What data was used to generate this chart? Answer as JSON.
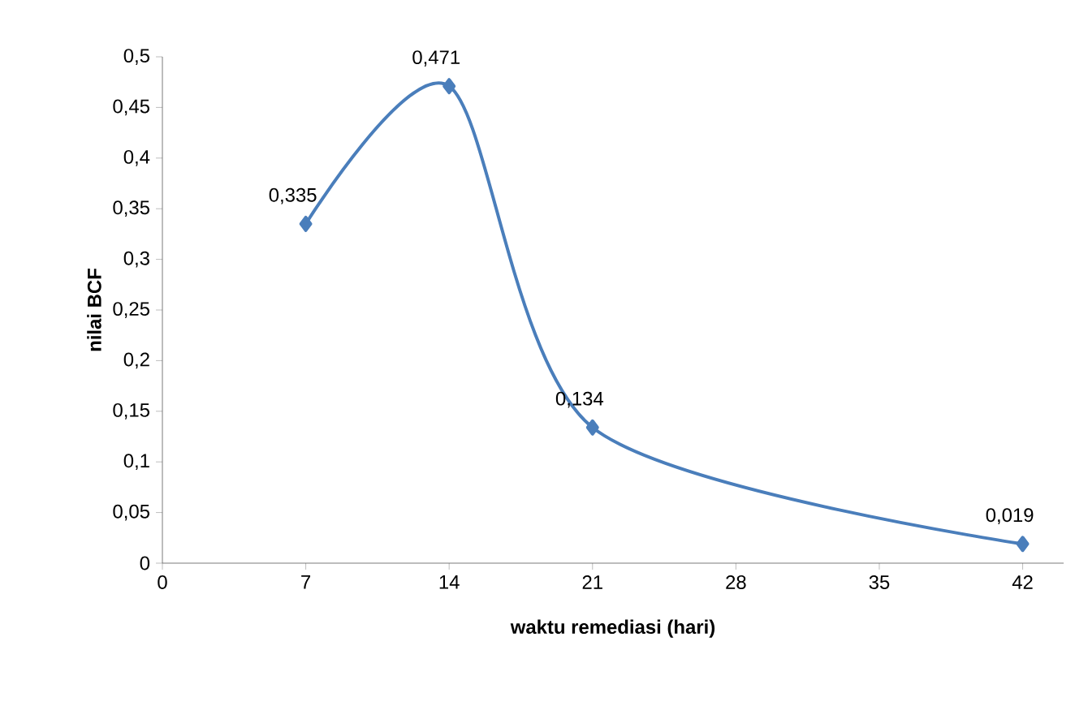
{
  "chart_data": {
    "type": "line",
    "xlabel": "waktu remediasi (hari)",
    "ylabel": "nilai BCF",
    "x": [
      7,
      14,
      21,
      42
    ],
    "series": [
      {
        "color": "#4a7ebb",
        "values": [
          0.335,
          0.471,
          0.134,
          0.019
        ],
        "value_labels": [
          "0,335",
          "0,471",
          "0,134",
          "0,019"
        ]
      }
    ],
    "xlim": [
      0,
      44
    ],
    "xticks": [
      0,
      7,
      14,
      21,
      28,
      35,
      42
    ],
    "ylim": [
      0,
      0.5
    ],
    "yticks": [
      0,
      {
        "value": 0.05,
        "label": "0,05"
      },
      {
        "value": 0.1,
        "label": "0,1"
      },
      {
        "value": 0.15,
        "label": "0,15"
      },
      {
        "value": 0.2,
        "label": "0,2"
      },
      {
        "value": 0.25,
        "label": "0,25"
      },
      {
        "value": 0.3,
        "label": "0,3"
      },
      {
        "value": 0.35,
        "label": "0,35"
      },
      {
        "value": 0.4,
        "label": "0,4"
      },
      {
        "value": 0.45,
        "label": "0,45"
      },
      {
        "value": 0.5,
        "label": "0,5"
      }
    ],
    "marker": "diamond",
    "line_style": "solid",
    "grid": false
  }
}
